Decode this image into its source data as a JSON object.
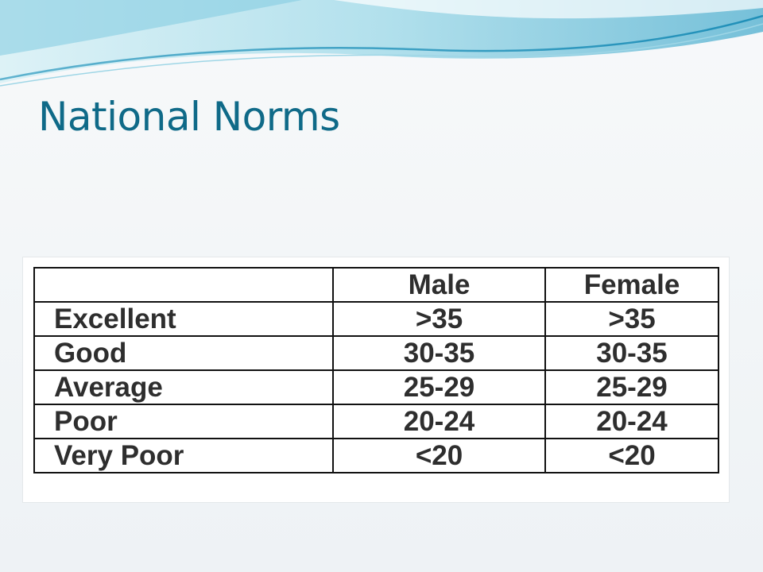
{
  "slide": {
    "title": "National Norms"
  },
  "norms_table": {
    "corner": "",
    "headers": [
      "Male",
      "Female"
    ],
    "rows": [
      {
        "label": "Excellent",
        "male": ">35",
        "female": ">35"
      },
      {
        "label": "Good",
        "male": "30-35",
        "female": "30-35"
      },
      {
        "label": "Average",
        "male": "25-29",
        "female": "25-29"
      },
      {
        "label": "Poor",
        "male": "20-24",
        "female": "20-24"
      },
      {
        "label": "Very Poor",
        "male": "<20",
        "female": "<20"
      }
    ]
  },
  "colors": {
    "title": "#0f6a88",
    "wave_light": "#bfe6ef",
    "wave_mid": "#7cc7dc",
    "wave_dark": "#2f9ec0",
    "table_text": "#2e2e2e"
  }
}
